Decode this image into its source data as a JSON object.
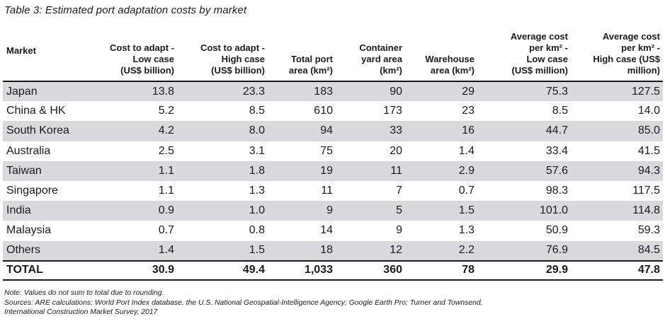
{
  "caption": "Table 3:  Estimated port adaptation costs by market",
  "columns": [
    "Market",
    "Cost to adapt -\nLow case\n(US$ billion)",
    "Cost to adapt -\nHigh case\n(US$ billion)",
    "Total port\narea (km²)",
    "Container\nyard area\n(km²)",
    "Warehouse\narea (km²)",
    "Average cost\nper km² -\nLow case\n(US$ million)",
    "Average cost\nper km² -\nHigh case (US$\nmillion)"
  ],
  "rows": [
    [
      "Japan",
      "13.8",
      "23.3",
      "183",
      "90",
      "29",
      "75.3",
      "127.5"
    ],
    [
      "China & HK",
      "5.2",
      "8.5",
      "610",
      "173",
      "23",
      "8.5",
      "14.0"
    ],
    [
      "South Korea",
      "4.2",
      "8.0",
      "94",
      "33",
      "16",
      "44.7",
      "85.0"
    ],
    [
      "Australia",
      "2.5",
      "3.1",
      "75",
      "20",
      "1.4",
      "33.4",
      "41.5"
    ],
    [
      "Taiwan",
      "1.1",
      "1.8",
      "19",
      "11",
      "2.9",
      "57.6",
      "94.3"
    ],
    [
      "Singapore",
      "1.1",
      "1.3",
      "11",
      "7",
      "0.7",
      "98.3",
      "117.5"
    ],
    [
      "India",
      "0.9",
      "1.0",
      "9",
      "5",
      "1.5",
      "101.0",
      "114.8"
    ],
    [
      "Malaysia",
      "0.7",
      "0.8",
      "14",
      "9",
      "1.3",
      "50.9",
      "59.3"
    ],
    [
      "Others",
      "1.4",
      "1.5",
      "18",
      "12",
      "2.2",
      "76.9",
      "84.5"
    ]
  ],
  "total": [
    "TOTAL",
    "30.9",
    "49.4",
    "1,033",
    "360",
    "78",
    "29.9",
    "47.8"
  ],
  "notes": {
    "note": "Note: Values do not sum to total due to rounding.",
    "sources_1": "Sources: ARE calculations; World Port Index database, the U.S. National Geospatial-Intelligence Agency; Google Earth Pro; Turner and Townsend,",
    "sources_2": "International Construction Market Survey, 2017"
  },
  "colors": {
    "row_shade": "#d9d9de",
    "rule": "#1a1a1a"
  }
}
